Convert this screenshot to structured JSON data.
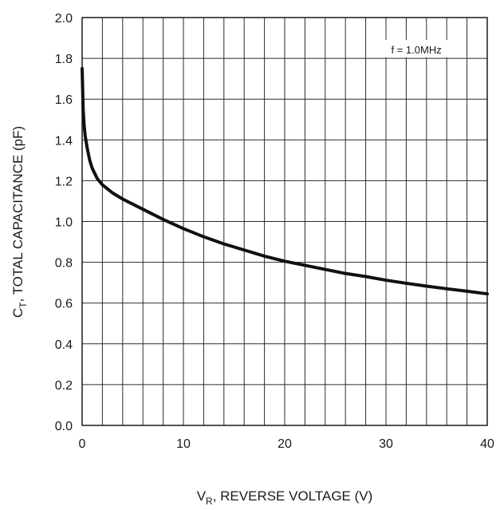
{
  "chart_data": {
    "type": "line",
    "title": "",
    "xlabel": "V",
    "xlabel_subscript": "R",
    "xlabel_rest": ", REVERSE VOLTAGE (V)",
    "ylabel": "C",
    "ylabel_subscript": "T",
    "ylabel_rest": ", TOTAL CAPACITANCE (pF)",
    "annotation": "f = 1.0MHz",
    "xlim": [
      0,
      40
    ],
    "ylim": [
      0.0,
      2.0
    ],
    "x_ticks": [
      0,
      10,
      20,
      30,
      40
    ],
    "x_tick_labels": [
      "0",
      "10",
      "20",
      "30",
      "40"
    ],
    "y_ticks": [
      0.0,
      0.2,
      0.4,
      0.6,
      0.8,
      1.0,
      1.2,
      1.4,
      1.6,
      1.8,
      2.0
    ],
    "y_tick_labels": [
      "0.0",
      "0.2",
      "0.4",
      "0.6",
      "0.8",
      "1.0",
      "1.2",
      "1.4",
      "1.6",
      "1.8",
      "2.0"
    ],
    "x_grid_step": 2,
    "y_grid_step": 0.2,
    "grid": true,
    "series": [
      {
        "x": [
          0,
          0.1,
          0.2,
          0.3,
          0.5,
          0.75,
          1,
          1.5,
          2,
          3,
          4,
          6,
          8,
          10,
          12,
          14,
          16,
          18,
          20,
          22,
          24,
          26,
          28,
          30,
          32,
          34,
          36,
          38,
          40
        ],
        "y": [
          1.75,
          1.55,
          1.47,
          1.42,
          1.36,
          1.3,
          1.26,
          1.21,
          1.18,
          1.14,
          1.11,
          1.06,
          1.01,
          0.965,
          0.925,
          0.89,
          0.86,
          0.83,
          0.805,
          0.785,
          0.765,
          0.745,
          0.73,
          0.712,
          0.697,
          0.683,
          0.67,
          0.658,
          0.645
        ],
        "color": "#111111"
      }
    ]
  }
}
